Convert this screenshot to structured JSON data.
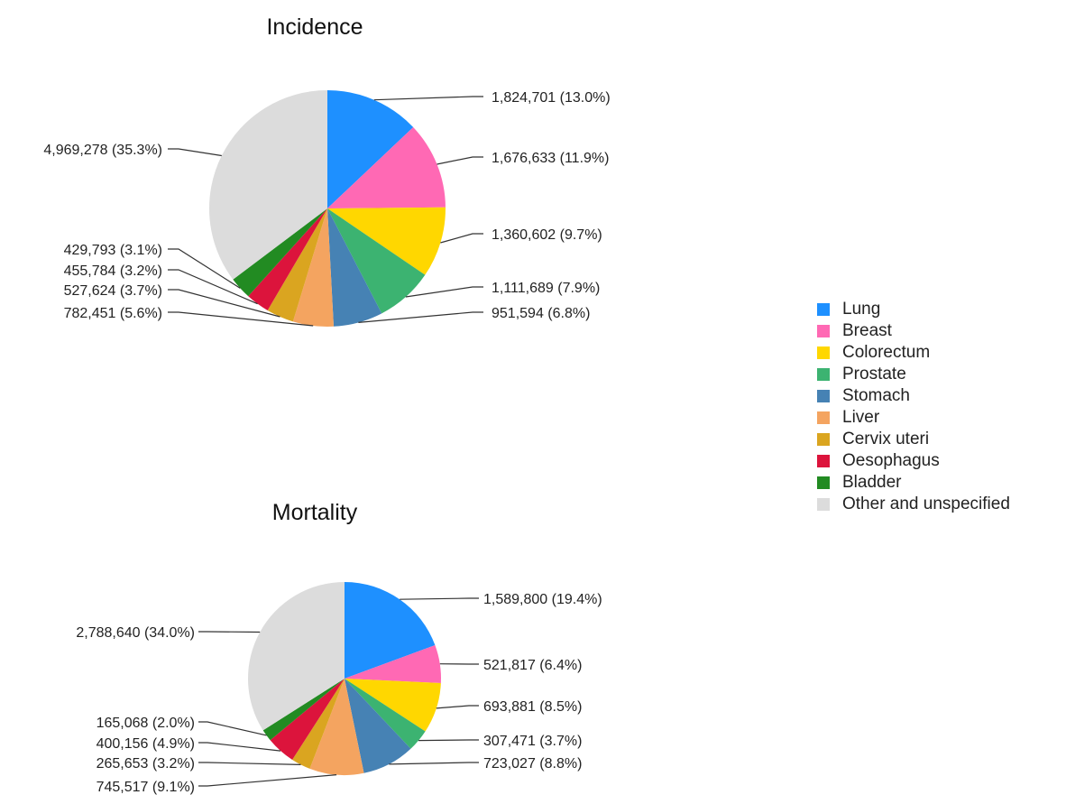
{
  "legend": {
    "items": [
      {
        "label": "Lung",
        "color": "#1E90FF"
      },
      {
        "label": "Breast",
        "color": "#FF69B4"
      },
      {
        "label": "Colorectum",
        "color": "#FFD700"
      },
      {
        "label": "Prostate",
        "color": "#3CB371"
      },
      {
        "label": "Stomach",
        "color": "#4682B4"
      },
      {
        "label": "Liver",
        "color": "#F4A460"
      },
      {
        "label": "Cervix uteri",
        "color": "#DAA520"
      },
      {
        "label": "Oesophagus",
        "color": "#DC143C"
      },
      {
        "label": "Bladder",
        "color": "#228B22"
      },
      {
        "label": "Other and unspecified",
        "color": "#DCDCDC"
      }
    ]
  },
  "chart_data": [
    {
      "type": "pie",
      "title": "Incidence",
      "categories": [
        "Lung",
        "Breast",
        "Colorectum",
        "Prostate",
        "Stomach",
        "Liver",
        "Cervix uteri",
        "Oesophagus",
        "Bladder",
        "Other and unspecified"
      ],
      "values": [
        1824701,
        1676633,
        1360602,
        1111689,
        951594,
        782451,
        527624,
        455784,
        429793,
        4969278
      ],
      "labels": [
        "1,824,701 (13.0%)",
        "1,676,633 (11.9%)",
        "1,360,602 (9.7%)",
        "1,111,689 (7.9%)",
        "951,594 (6.8%)",
        "782,451 (5.6%)",
        "527,624 (3.7%)",
        "455,784 (3.2%)",
        "429,793 (3.1%)",
        "4,969,278 (35.3%)"
      ],
      "legend": "right"
    },
    {
      "type": "pie",
      "title": "Mortality",
      "categories": [
        "Lung",
        "Breast",
        "Colorectum",
        "Prostate",
        "Stomach",
        "Liver",
        "Cervix uteri",
        "Oesophagus",
        "Bladder",
        "Other and unspecified"
      ],
      "values": [
        1589800,
        521817,
        693881,
        307471,
        723027,
        745517,
        265653,
        400156,
        165068,
        2788640
      ],
      "labels": [
        "1,589,800 (19.4%)",
        "521,817 (6.4%)",
        "693,881 (8.5%)",
        "307,471 (3.7%)",
        "723,027 (8.8%)",
        "745,517 (9.1%)",
        "265,653 (3.2%)",
        "400,156 (4.9%)",
        "165,068 (2.0%)",
        "2,788,640 (34.0%)"
      ],
      "legend": "right"
    }
  ]
}
